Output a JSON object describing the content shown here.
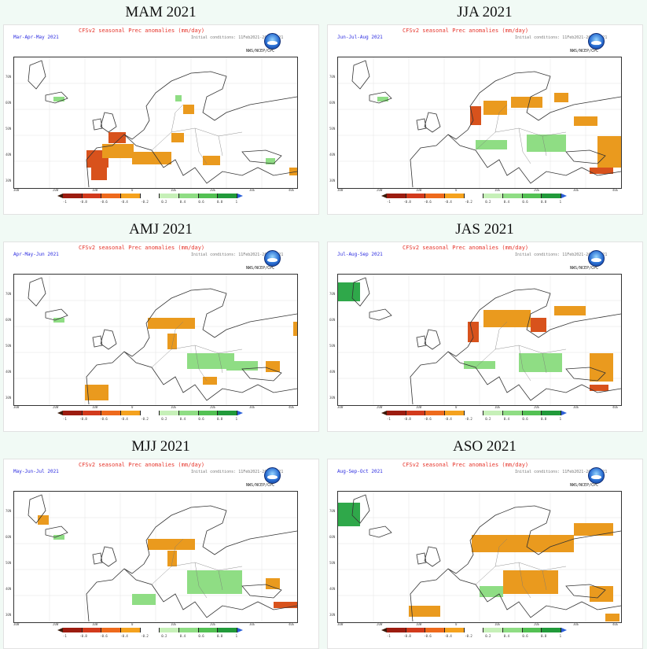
{
  "panels": [
    {
      "title": "MAM 2021",
      "months": "Mar-Apr-May 2021"
    },
    {
      "title": "JJA 2021",
      "months": "Jun-Jul-Aug 2021"
    },
    {
      "title": "AMJ 2021",
      "months": "Apr-May-Jun 2021"
    },
    {
      "title": "JAS 2021",
      "months": "Jul-Aug-Sep 2021"
    },
    {
      "title": "MJJ 2021",
      "months": "May-Jun-Jul 2021"
    },
    {
      "title": "ASO 2021",
      "months": "Aug-Sep-Oct 2021"
    }
  ],
  "map_title": "CFSv2 seasonal Prec anomalies (mm/day)",
  "init_conditions": "Initial conditions: 11Feb2021-20Feb2021",
  "agency": "NWS/NCEP/CPC",
  "colorbar": {
    "ticks": [
      "-1",
      "-0.8",
      "-0.6",
      "-0.4",
      "-0.2",
      "0.2",
      "0.4",
      "0.6",
      "0.8",
      "1"
    ],
    "colors": [
      "#9c1c10",
      "#d23a1c",
      "#ee6a1c",
      "#f5a21e",
      "#ffffff",
      "#c6f0b8",
      "#8fdd84",
      "#53c153",
      "#219a3a"
    ]
  },
  "lon_labels": [
    "30W",
    "20W",
    "10W",
    "0",
    "10E",
    "20E",
    "30E",
    "40E"
  ],
  "lat_labels": [
    "30N",
    "40N",
    "50N",
    "60N",
    "70N"
  ],
  "colors": {
    "drought": "#ea9a1e",
    "dry_strong": "#d8521c",
    "wet": "#8fdd84",
    "wet_strong": "#2fa84a",
    "ocean": "#ffffff",
    "coast": "#333333"
  }
}
